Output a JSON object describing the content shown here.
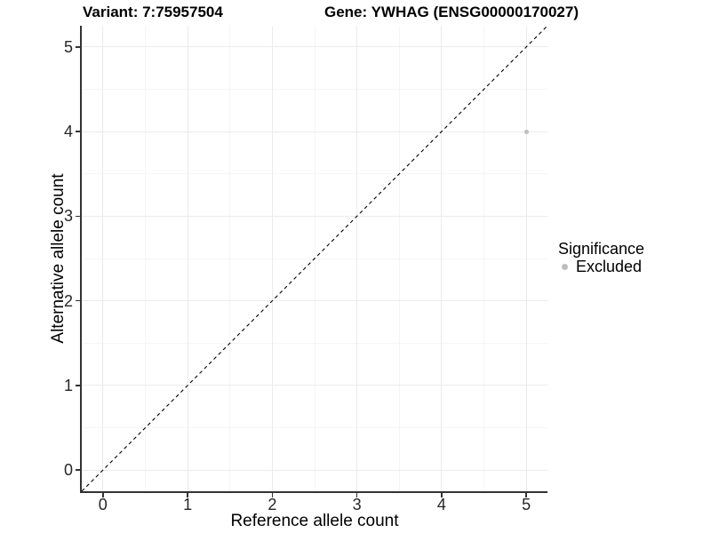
{
  "chart_data": {
    "type": "scatter",
    "titles": {
      "left": "Variant: 7:75957504",
      "right": "Gene: YWHAG (ENSG00000170027)"
    },
    "xlabel": "Reference allele count",
    "ylabel": "Alternative allele count",
    "xlim": [
      -0.25,
      5.25
    ],
    "ylim": [
      -0.25,
      5.25
    ],
    "x_major_ticks": [
      0,
      1,
      2,
      3,
      4,
      5
    ],
    "x_tick_labels": [
      "0",
      "1",
      "2",
      "3",
      "4",
      "5"
    ],
    "y_major_ticks": [
      0,
      1,
      2,
      3,
      4,
      5
    ],
    "y_tick_labels": [
      "0",
      "1",
      "2",
      "3",
      "4",
      "5"
    ],
    "x_minor_ticks": [
      0.5,
      1.5,
      2.5,
      3.5,
      4.5
    ],
    "y_minor_ticks": [
      0.5,
      1.5,
      2.5,
      3.5,
      4.5
    ],
    "grid": "major+minor",
    "reference_line": {
      "type": "identity",
      "slope": 1,
      "intercept": 0,
      "style": "dashed"
    },
    "series": [
      {
        "name": "Excluded",
        "color": "#BEBEBE",
        "points": [
          {
            "x": 5,
            "y": 4
          }
        ]
      }
    ],
    "legend": {
      "title": "Significance",
      "position": "right",
      "items": [
        {
          "label": "Excluded",
          "color": "#BEBEBE",
          "marker": "circle"
        }
      ]
    }
  },
  "colors": {
    "background": "#FFFFFF",
    "grid_major": "#EBEBEB",
    "grid_minor": "#F5F5F5",
    "axis_line": "#333333",
    "tick_text": "#262626",
    "title_text": "#000000",
    "reference_line": "#000000",
    "point": "#BEBEBE"
  }
}
